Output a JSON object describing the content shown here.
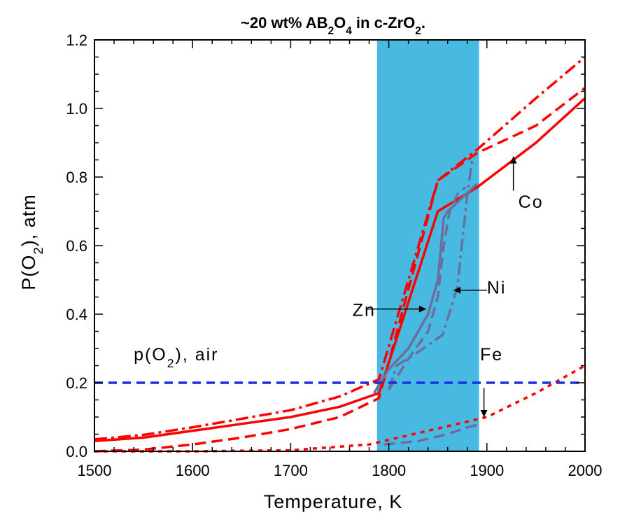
{
  "chart_data": {
    "type": "line",
    "title_parts": [
      "~20 wt% AB",
      "2",
      "O",
      "4",
      " in c-ZrO",
      "2",
      "."
    ],
    "xlabel": "Temperature, K",
    "ylabel_parts": [
      "P(O",
      "2",
      "), atm"
    ],
    "xlim": [
      1500,
      2000
    ],
    "ylim": [
      0.0,
      1.2
    ],
    "x_ticks": [
      "1500",
      "1600",
      "1700",
      "1800",
      "1900",
      "2000"
    ],
    "y_ticks": [
      "0.0",
      "0.2",
      "0.4",
      "0.6",
      "0.8",
      "1.0",
      "1.2"
    ],
    "x_tick_values": [
      1500,
      1600,
      1700,
      1800,
      1900,
      2000
    ],
    "y_tick_values": [
      0.0,
      0.2,
      0.4,
      0.6,
      0.8,
      1.0,
      1.2
    ],
    "grid": false,
    "shaded_region": {
      "x": [
        1788,
        1892
      ],
      "color": "#38b4de"
    },
    "reference_line": {
      "y": 0.2,
      "color": "#1a2fe0",
      "style": "dashed"
    },
    "series": [
      {
        "name": "Co",
        "color": "#ff0000",
        "style": "solid",
        "x": [
          1500,
          1550,
          1600,
          1650,
          1700,
          1750,
          1790,
          1850,
          1890,
          1950,
          2000
        ],
        "y": [
          0.03,
          0.04,
          0.06,
          0.08,
          0.1,
          0.13,
          0.17,
          0.7,
          0.77,
          0.9,
          1.03
        ]
      },
      {
        "color": "#ff0000",
        "style": "dashdot",
        "x": [
          1500,
          1550,
          1600,
          1650,
          1700,
          1750,
          1790,
          1850,
          1890,
          1950,
          2000
        ],
        "y": [
          0.035,
          0.048,
          0.07,
          0.095,
          0.12,
          0.16,
          0.21,
          0.79,
          0.88,
          1.03,
          1.15
        ]
      },
      {
        "color": "#ff0000",
        "style": "dashed",
        "x": [
          1500,
          1550,
          1600,
          1650,
          1700,
          1750,
          1790,
          1850,
          1890,
          1950,
          2000
        ],
        "y": [
          0.0,
          0.005,
          0.02,
          0.04,
          0.065,
          0.1,
          0.155,
          0.79,
          0.87,
          0.95,
          1.06
        ]
      },
      {
        "color": "#ff0000",
        "style": "dotted",
        "x": [
          1500,
          1600,
          1700,
          1780,
          1900,
          1950,
          2000
        ],
        "y": [
          0.0,
          0.0,
          0.003,
          0.02,
          0.1,
          0.17,
          0.25
        ]
      },
      {
        "name": "Zn",
        "color": "#6a6f9e",
        "style": "solid",
        "x": [
          1785,
          1800,
          1820,
          1840,
          1850,
          1856,
          1860,
          1890
        ],
        "y": [
          0.17,
          0.24,
          0.3,
          0.4,
          0.5,
          0.68,
          0.7,
          0.78
        ]
      },
      {
        "color": "#6a6f9e",
        "style": "dashed",
        "x": [
          1800,
          1820,
          1840,
          1850,
          1856,
          1862,
          1870,
          1878
        ],
        "y": [
          0.18,
          0.27,
          0.35,
          0.45,
          0.6,
          0.7,
          0.75,
          0.77
        ]
      },
      {
        "name": "Ni",
        "color": "#6a6f9e",
        "style": "dashdot",
        "x": [
          1800,
          1808,
          1825,
          1845,
          1855,
          1870,
          1880,
          1885
        ],
        "y": [
          0.18,
          0.25,
          0.28,
          0.32,
          0.34,
          0.48,
          0.75,
          0.85
        ]
      },
      {
        "name": "Fe",
        "color": "#6a6f9e",
        "style": "dashed",
        "x": [
          1795,
          1830,
          1860,
          1880,
          1895
        ],
        "y": [
          0.02,
          0.03,
          0.05,
          0.07,
          0.08
        ]
      }
    ],
    "annotations": [
      {
        "label": "Co",
        "x": 1932,
        "y": 0.71
      },
      {
        "label": "Ni",
        "x": 1900,
        "y": 0.46
      },
      {
        "label": "Zn",
        "x": 1763,
        "y": 0.395
      },
      {
        "label": "Fe",
        "x": 1893,
        "y": 0.265
      },
      {
        "label_parts": [
          "p(O",
          "2",
          "), air"
        ],
        "x": 1540,
        "y": 0.265
      }
    ]
  }
}
